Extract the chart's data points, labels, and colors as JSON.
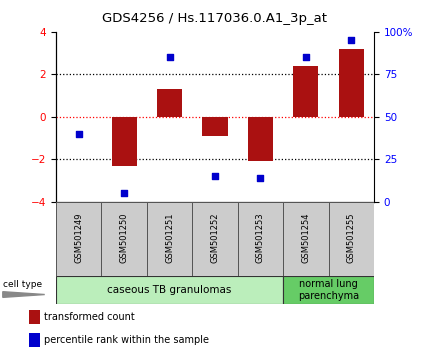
{
  "title": "GDS4256 / Hs.117036.0.A1_3p_at",
  "samples": [
    "GSM501249",
    "GSM501250",
    "GSM501251",
    "GSM501252",
    "GSM501253",
    "GSM501254",
    "GSM501255"
  ],
  "transformed_count": [
    0.0,
    -2.3,
    1.3,
    -0.9,
    -2.1,
    2.4,
    3.2
  ],
  "percentile_rank": [
    40,
    5,
    85,
    15,
    14,
    85,
    95
  ],
  "bar_color": "#aa1111",
  "dot_color": "#0000cc",
  "left_ylim": [
    -4,
    4
  ],
  "left_yticks": [
    -4,
    -2,
    0,
    2,
    4
  ],
  "right_ylim": [
    0,
    100
  ],
  "right_yticks": [
    0,
    25,
    50,
    75,
    100
  ],
  "right_yticklabels": [
    "0",
    "25",
    "50",
    "75",
    "100%"
  ],
  "groups": [
    {
      "label": "caseous TB granulomas",
      "n_samples": 5,
      "color": "#bbeebb"
    },
    {
      "label": "normal lung\nparenchyma",
      "n_samples": 2,
      "color": "#66cc66"
    }
  ],
  "cell_type_label": "cell type",
  "legend": [
    {
      "label": "transformed count",
      "color": "#aa1111"
    },
    {
      "label": "percentile rank within the sample",
      "color": "#0000cc"
    }
  ],
  "bar_width": 0.55,
  "label_area_facecolor": "#cccccc",
  "group_border_color": "#333333"
}
